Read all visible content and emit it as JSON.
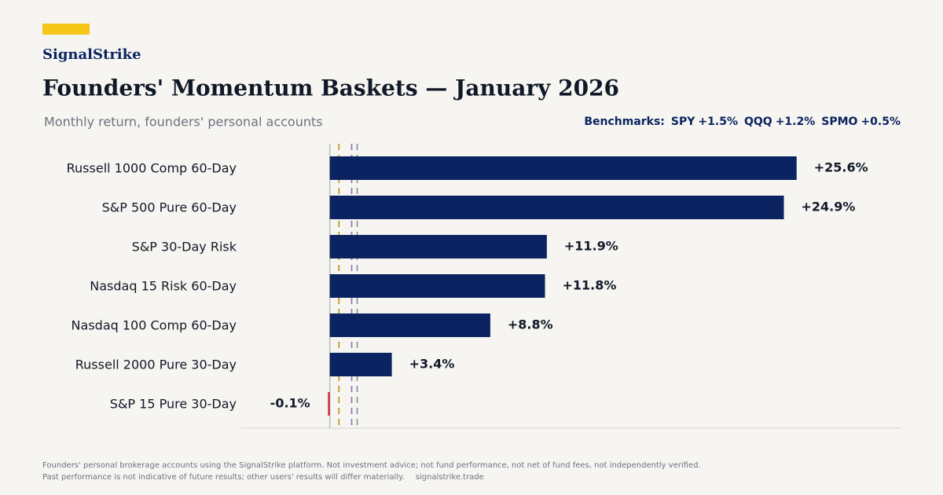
{
  "brand": "SignalStrike",
  "chart_data": {
    "type": "hbar",
    "title": "Founders' Momentum Baskets — January 2026",
    "subtitle": "Monthly return, founders' personal accounts",
    "categories": [
      "Russell 1000 Comp 60-Day",
      "S&P 500 Pure 60-Day",
      "S&P 30-Day Risk",
      "Nasdaq 15 Risk 60-Day",
      "Nasdaq 100 Comp 60-Day",
      "Russell 2000 Pure 30-Day",
      "S&P 15 Pure 30-Day"
    ],
    "values": [
      25.6,
      24.9,
      11.9,
      11.8,
      8.8,
      3.4,
      -0.1
    ],
    "value_labels": [
      "+25.6%",
      "+24.9%",
      "+11.9%",
      "+11.8%",
      "+8.8%",
      "+3.4%",
      "-0.1%"
    ],
    "color": "#0b2360",
    "negative_color": "#c62828",
    "xlim": [
      -4.9,
      31.3
    ],
    "benchmarks_label": "Benchmarks:",
    "benchmarks": [
      {
        "name": "SPY",
        "value": 1.5,
        "value_label": "+1.5%",
        "color": "#8a8a9a"
      },
      {
        "name": "QQQ",
        "value": 1.2,
        "value_label": "+1.2%",
        "color": "#8a6fb0"
      },
      {
        "name": "SPMO",
        "value": 0.5,
        "value_label": "+0.5%",
        "color": "#b8920a"
      }
    ]
  },
  "footer": {
    "lines": [
      "Founders' personal brokerage accounts using the SignalStrike platform. Not investment advice; not fund performance, not net of fund fees, not independently verified.",
      "Past performance is not indicative of future results; other users' results will differ materially."
    ],
    "url": "signalstrike.trade"
  }
}
